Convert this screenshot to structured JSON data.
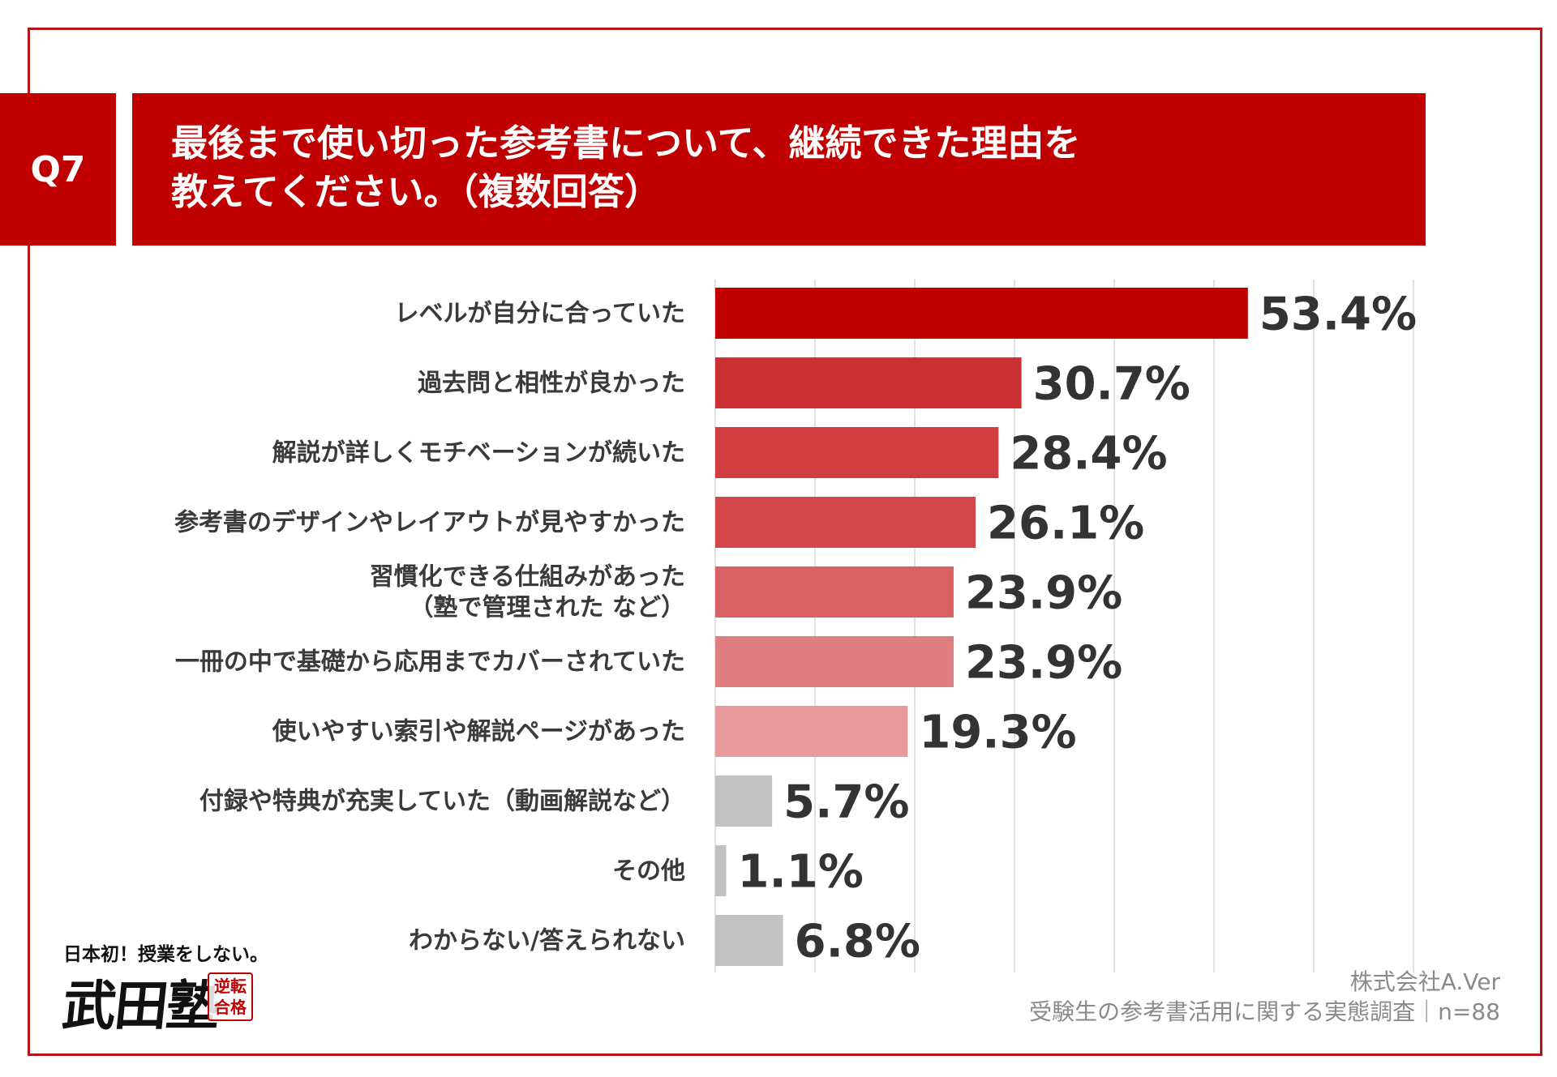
{
  "header": {
    "question_no": "Q7",
    "title_lines": [
      "最後まで使い切った参考書について、継続できた理由を",
      "教えてください。（複数回答）"
    ]
  },
  "chart_data": {
    "type": "bar",
    "orientation": "horizontal",
    "categories": [
      [
        "レベルが自分に合っていた"
      ],
      [
        "過去問と相性が良かった"
      ],
      [
        "解説が詳しくモチベーションが続いた"
      ],
      [
        "参考書のデザインやレイアウトが見やすかった"
      ],
      [
        "習慣化できる仕組みがあった",
        "（塾で管理された など）"
      ],
      [
        "一冊の中で基礎から応用までカバーされていた"
      ],
      [
        "使いやすい索引や解説ページがあった"
      ],
      [
        "付録や特典が充実していた（動画解説など）"
      ],
      [
        "その他"
      ],
      [
        "わからない/答えられない"
      ]
    ],
    "values": [
      53.4,
      30.7,
      28.4,
      26.1,
      23.9,
      23.9,
      19.3,
      5.7,
      1.1,
      6.8
    ],
    "value_labels": [
      "53.4%",
      "30.7%",
      "28.4%",
      "26.1%",
      "23.9%",
      "23.9%",
      "19.3%",
      "5.7%",
      "1.1%",
      "6.8%"
    ],
    "bar_colors": [
      "#c00000",
      "#cc2f34",
      "#d13c41",
      "#d3474b",
      "#da6163",
      "#e07d7e",
      "#e8999b",
      "#c2c2c2",
      "#c2c2c2",
      "#c2c2c2"
    ],
    "xlim": [
      0,
      70
    ],
    "grid": true,
    "grid_color": "#d9d9d9"
  },
  "source": {
    "company": "株式会社A.Ver",
    "survey": "受験生の参考書活用に関する実態調査｜n=88"
  },
  "logo": {
    "tagline": "日本初！授業をしない。",
    "name": "武田塾",
    "seal": "逆転合格"
  }
}
